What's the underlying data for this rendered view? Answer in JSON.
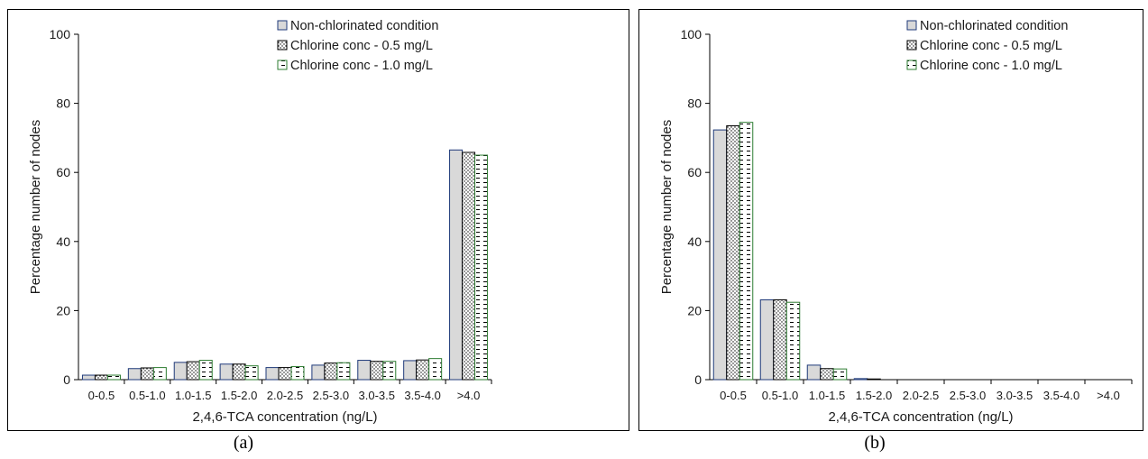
{
  "figure": {
    "panel_labels": [
      "(a)",
      "(b)"
    ]
  },
  "colors": {
    "non_chlorinated_fill": "#d9d9d9",
    "non_chlorinated_stroke": "#1f3a7a",
    "chlorine_05_stroke": "#000000",
    "chlorine_10_stroke": "#2e7d32",
    "axis": "#000000"
  },
  "chart_data": [
    {
      "type": "bar",
      "panel": "(a)",
      "categories": [
        "0-0.5",
        "0.5-1.0",
        "1.0-1.5",
        "1.5-2.0",
        "2.0-2.5",
        "2.5-3.0",
        "3.0-3.5",
        "3.5-4.0",
        ">4.0"
      ],
      "series": [
        {
          "name": "Non-chlorinated condition",
          "values": [
            1.3,
            3.2,
            5.0,
            4.5,
            3.5,
            4.2,
            5.6,
            5.5,
            66.5
          ],
          "pattern": "solid-gray"
        },
        {
          "name": "Chlorine conc - 0.5 mg/L",
          "values": [
            1.3,
            3.4,
            5.2,
            4.5,
            3.5,
            4.8,
            5.3,
            5.7,
            65.8
          ],
          "pattern": "dotted"
        },
        {
          "name": "Chlorine conc - 1.0 mg/L",
          "values": [
            1.3,
            3.5,
            5.6,
            4.0,
            3.8,
            4.9,
            5.3,
            6.1,
            65.0
          ],
          "pattern": "dashed-green"
        }
      ],
      "xlabel": "2,4,6-TCA concentration (ng/L)",
      "ylabel": "Percentage number of nodes",
      "ylim": [
        0,
        100
      ],
      "yticks": [
        0,
        20,
        40,
        60,
        80,
        100
      ],
      "grid": false,
      "legend": "top-right"
    },
    {
      "type": "bar",
      "panel": "(b)",
      "categories": [
        "0-0.5",
        "0.5-1.0",
        "1.0-1.5",
        "1.5-2.0",
        "2.0-2.5",
        "2.5-3.0",
        "3.0-3.5",
        "3.5-4.0",
        ">4.0"
      ],
      "series": [
        {
          "name": "Non-chlorinated condition",
          "values": [
            72.3,
            23.1,
            4.2,
            0.3,
            0,
            0,
            0,
            0,
            0
          ],
          "pattern": "solid-gray"
        },
        {
          "name": "Chlorine conc - 0.5 mg/L",
          "values": [
            73.5,
            23.1,
            3.2,
            0.2,
            0,
            0,
            0,
            0,
            0
          ],
          "pattern": "dotted"
        },
        {
          "name": "Chlorine conc - 1.0 mg/L",
          "values": [
            74.5,
            22.4,
            3.1,
            0,
            0,
            0,
            0,
            0,
            0
          ],
          "pattern": "dashed-green"
        }
      ],
      "xlabel": "2,4,6-TCA concentration (ng/L)",
      "ylabel": "Percentage number of nodes",
      "ylim": [
        0,
        100
      ],
      "yticks": [
        0,
        20,
        40,
        60,
        80,
        100
      ],
      "grid": false,
      "legend": "top-right"
    }
  ]
}
